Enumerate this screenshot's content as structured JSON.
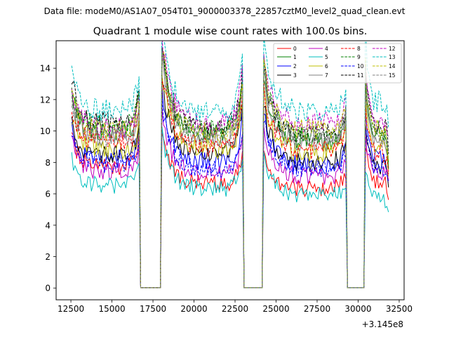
{
  "figure": {
    "suptitle": "Data file: modeM0/AS1A07_054T01_9000003378_22857cztM0_level2_quad_clean.evt"
  },
  "chart_data": {
    "type": "line",
    "title": "Quadrant 1 module wise count rates with 100.0s bins.",
    "xlabel": "",
    "ylabel": "",
    "x_offset_label": "+3.145e8",
    "x_offset": 314500000,
    "xlim": [
      11600,
      32800
    ],
    "ylim": [
      -0.75,
      15.75
    ],
    "xticks": [
      12500,
      15000,
      17500,
      20000,
      22500,
      25000,
      27500,
      30000,
      32500
    ],
    "xtick_labels": [
      "12500",
      "15000",
      "17500",
      "20000",
      "22500",
      "25000",
      "27500",
      "30000",
      "32500"
    ],
    "yticks": [
      0,
      2,
      4,
      6,
      8,
      10,
      12,
      14
    ],
    "ytick_labels": [
      "0",
      "2",
      "4",
      "6",
      "8",
      "10",
      "12",
      "14"
    ],
    "legend_position": "top-right",
    "time_bin_s": 100,
    "segments": [
      {
        "start": 12550,
        "end": 16650,
        "entry_peak": 1.25,
        "exit_peak": 1.22
      },
      {
        "start": 18050,
        "end": 22950,
        "entry_peak": 1.55,
        "exit_peak": 1.35
      },
      {
        "start": 24250,
        "end": 29250,
        "entry_peak": 1.45,
        "exit_peak": 1.15
      },
      {
        "start": 30450,
        "end": 31850,
        "entry_peak": 1.4,
        "exit_peak": 0.85
      }
    ],
    "gaps": [
      {
        "from": 16650,
        "to": 18050,
        "value": 0
      },
      {
        "from": 22950,
        "to": 24250,
        "value": 0
      },
      {
        "from": 29250,
        "to": 30450,
        "value": 0
      }
    ],
    "series": [
      {
        "name": "0",
        "color": "#ff0000",
        "dash": "solid",
        "baseline": [
          7.8,
          6.6,
          6.3,
          6.7
        ]
      },
      {
        "name": "1",
        "color": "#008000",
        "dash": "solid",
        "baseline": [
          10.0,
          9.8,
          9.4,
          9.6
        ]
      },
      {
        "name": "2",
        "color": "#0000ff",
        "dash": "solid",
        "baseline": [
          8.2,
          8.0,
          7.8,
          8.3
        ]
      },
      {
        "name": "3",
        "color": "#000000",
        "dash": "solid",
        "baseline": [
          8.4,
          8.6,
          8.0,
          7.8
        ]
      },
      {
        "name": "4",
        "color": "#bf00bf",
        "dash": "solid",
        "baseline": [
          7.4,
          7.3,
          7.1,
          7.4
        ]
      },
      {
        "name": "5",
        "color": "#00bfbf",
        "dash": "solid",
        "baseline": [
          6.5,
          6.3,
          5.9,
          5.6
        ]
      },
      {
        "name": "6",
        "color": "#bfbf00",
        "dash": "solid",
        "baseline": [
          8.8,
          8.9,
          8.6,
          8.8
        ]
      },
      {
        "name": "7",
        "color": "#808080",
        "dash": "solid",
        "baseline": [
          9.6,
          9.5,
          9.3,
          9.3
        ]
      },
      {
        "name": "8",
        "color": "#ff0000",
        "dash": "dashed",
        "baseline": [
          9.3,
          9.0,
          8.8,
          8.6
        ]
      },
      {
        "name": "9",
        "color": "#008000",
        "dash": "dashed",
        "baseline": [
          10.3,
          10.0,
          9.8,
          10.0
        ]
      },
      {
        "name": "10",
        "color": "#0000ff",
        "dash": "dashed",
        "baseline": [
          7.9,
          7.6,
          7.6,
          7.6
        ]
      },
      {
        "name": "11",
        "color": "#000000",
        "dash": "dashed",
        "baseline": [
          10.5,
          10.2,
          9.8,
          10.3
        ]
      },
      {
        "name": "12",
        "color": "#bf00bf",
        "dash": "dashed",
        "baseline": [
          10.2,
          10.4,
          10.5,
          10.6
        ]
      },
      {
        "name": "13",
        "color": "#00bfbf",
        "dash": "dashed",
        "baseline": [
          11.3,
          11.1,
          11.2,
          11.8
        ]
      },
      {
        "name": "14",
        "color": "#bfbf00",
        "dash": "dashed",
        "baseline": [
          10.0,
          9.9,
          10.1,
          10.0
        ]
      },
      {
        "name": "15",
        "color": "#808080",
        "dash": "dashed",
        "baseline": [
          9.6,
          9.8,
          9.6,
          9.6
        ]
      }
    ]
  }
}
